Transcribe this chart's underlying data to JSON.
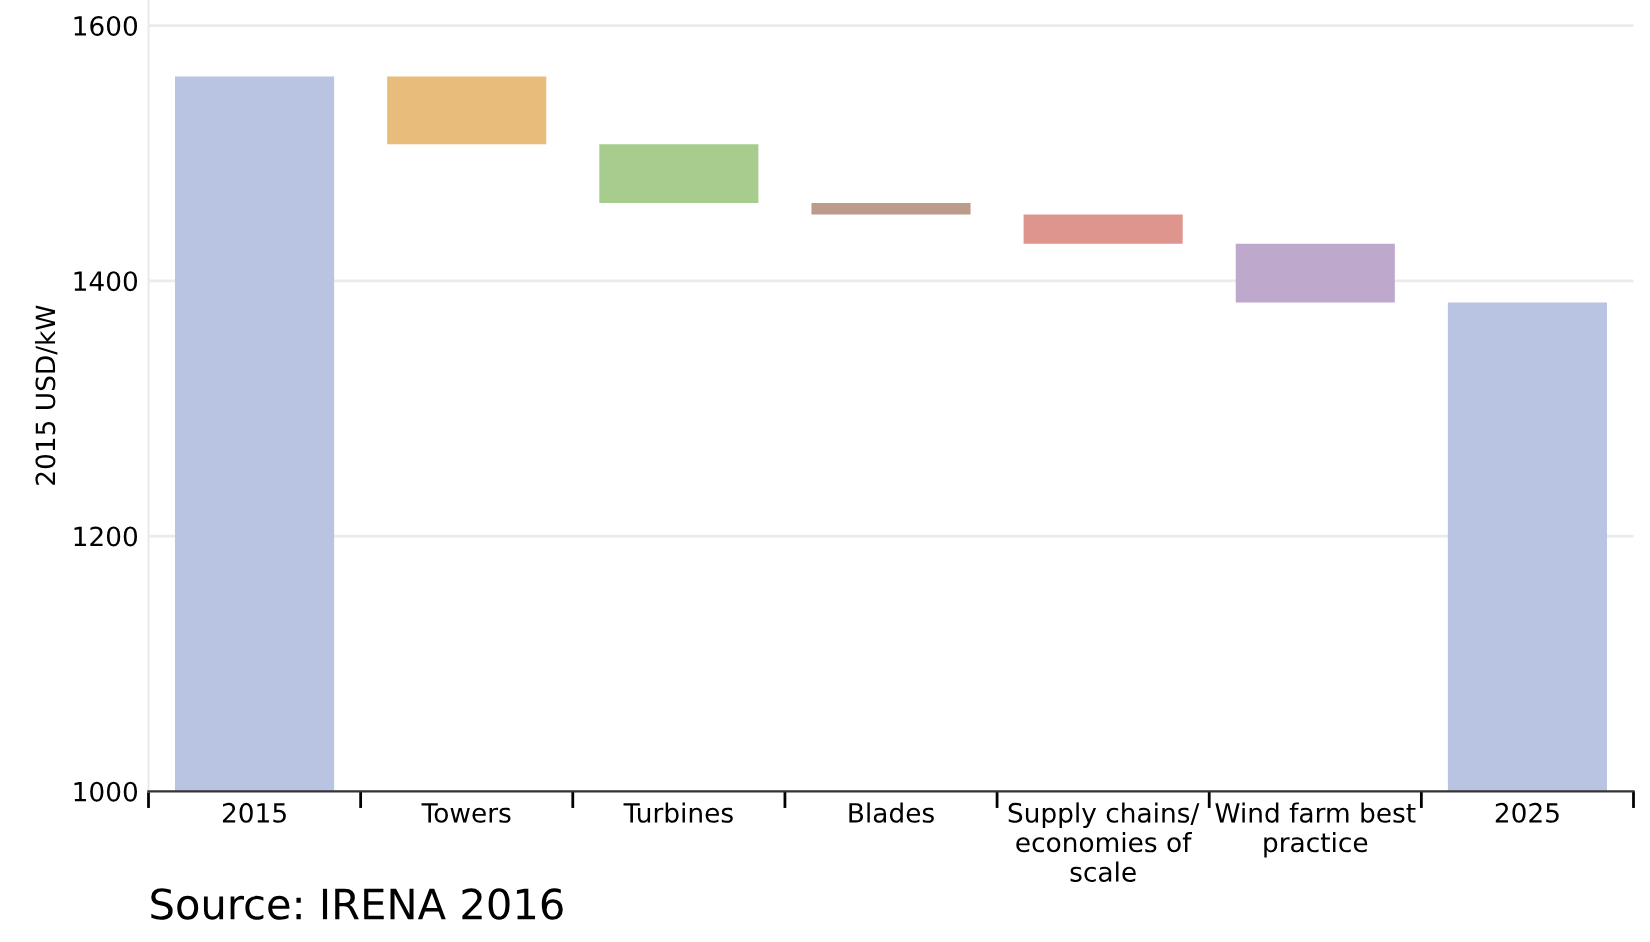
{
  "chart_data": {
    "type": "bar",
    "ylabel": "2015 USD/kW",
    "categories": [
      "2015",
      "Towers",
      "Turbines",
      "Blades",
      "Supply chains/\neconomies of\nscale",
      "Wind farm best\npractice",
      "2025"
    ],
    "base": [
      1000,
      1560,
      1507,
      1461,
      1452,
      1429,
      1000
    ],
    "values": [
      560,
      -53,
      -46,
      -9,
      -23,
      -46,
      383
    ],
    "colors": [
      "#b8c4e2",
      "#e8bc7a",
      "#a6cc8e",
      "#bb9c8c",
      "#dd958e",
      "#bea9cc",
      "#b8c4e2"
    ],
    "ylim": [
      1000,
      1620
    ],
    "yticks": [
      1000,
      1200,
      1400,
      1600
    ],
    "grid": "y",
    "annotations": [
      "Source: IRENA 2016"
    ]
  }
}
